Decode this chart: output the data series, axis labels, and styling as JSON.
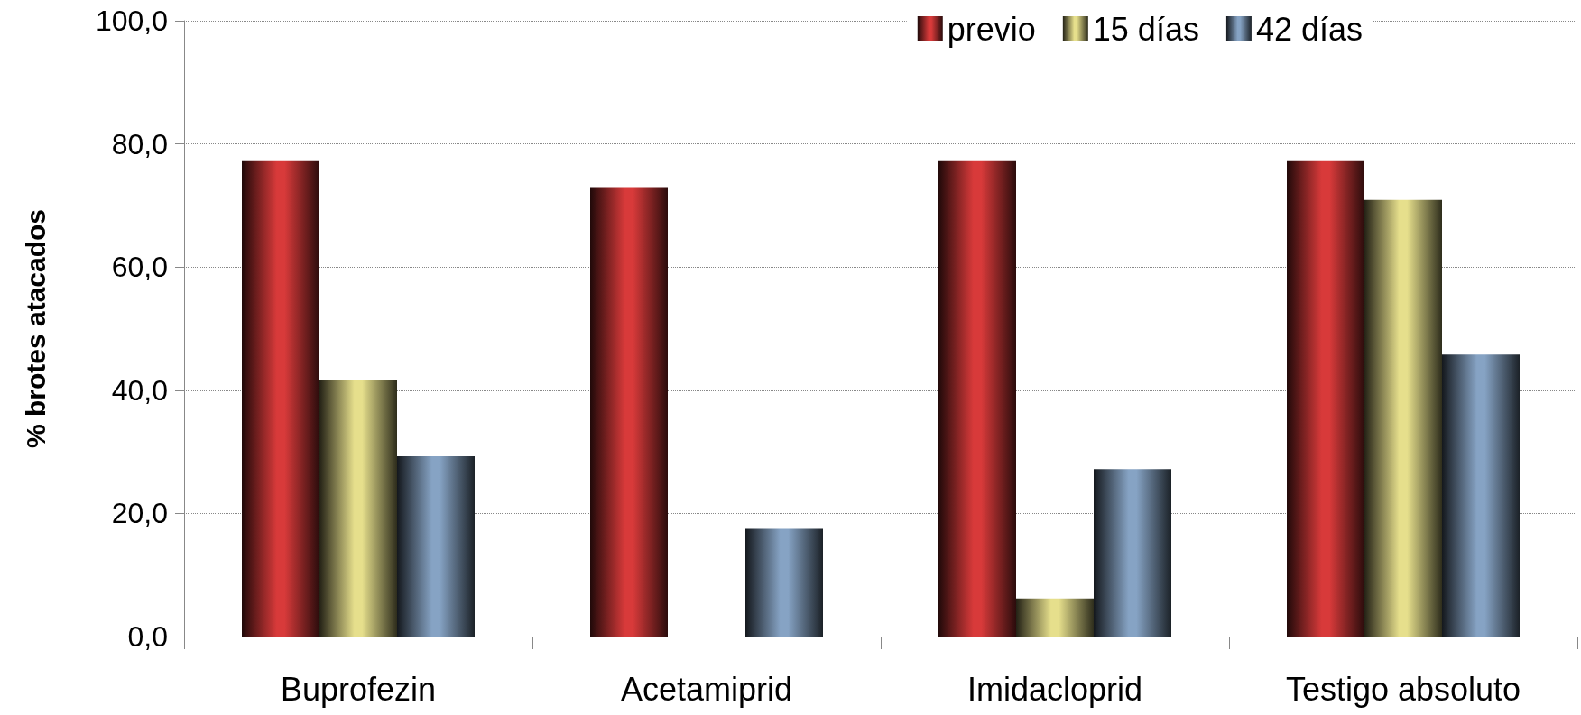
{
  "chart_data": {
    "type": "bar",
    "ylabel": "% brotes atacados",
    "categories": [
      "Buprofezin",
      "Acetamiprid",
      "Imidacloprid",
      "Testigo absoluto"
    ],
    "series": [
      {
        "name": "previo",
        "color": "#d83a3a",
        "values": [
          77.2,
          73.0,
          77.2,
          77.2
        ]
      },
      {
        "name": "15 días",
        "color": "#e6df8c",
        "values": [
          41.7,
          0,
          6.2,
          70.9
        ]
      },
      {
        "name": "42 días",
        "color": "#86a3c4",
        "values": [
          29.3,
          17.5,
          27.2,
          45.8
        ]
      }
    ],
    "ylim": [
      0,
      100
    ],
    "yticks": [
      {
        "value": 0,
        "label": "0,0"
      },
      {
        "value": 20,
        "label": "20,0"
      },
      {
        "value": 40,
        "label": "40,0"
      },
      {
        "value": 60,
        "label": "60,0"
      },
      {
        "value": 80,
        "label": "80,0"
      },
      {
        "value": 100,
        "label": "100,0"
      }
    ],
    "grid": "y",
    "legend": "top right"
  }
}
